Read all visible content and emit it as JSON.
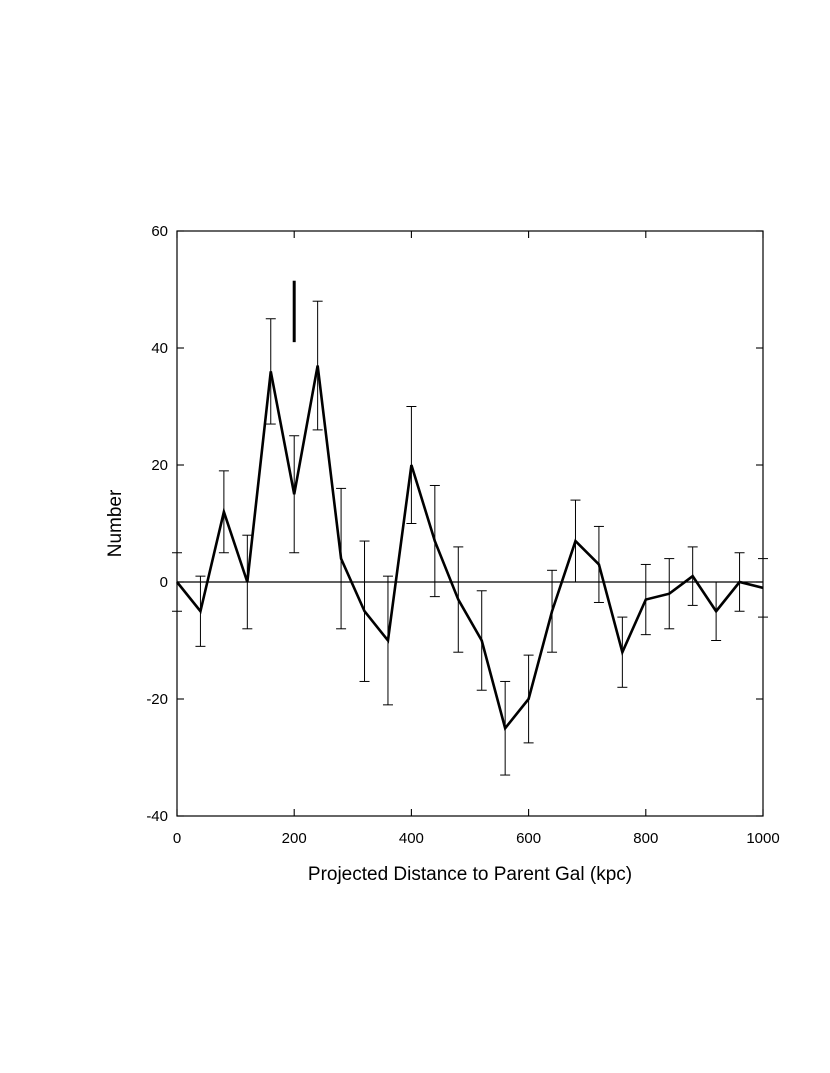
{
  "chart_data": {
    "type": "line",
    "title": "",
    "xlabel": "Projected Distance to Parent Gal (kpc)",
    "ylabel": "Number",
    "xlim": [
      0,
      1000
    ],
    "ylim": [
      -40,
      60
    ],
    "x_ticks": [
      0,
      200,
      400,
      600,
      800,
      1000
    ],
    "y_ticks": [
      -40,
      -20,
      0,
      20,
      40,
      60
    ],
    "x_tick_labels": [
      "0",
      "200",
      "400",
      "600",
      "800",
      "1000"
    ],
    "y_tick_labels": [
      "-40",
      "-20",
      "0",
      "20",
      "40",
      "60"
    ],
    "grid": false,
    "legend": "none",
    "zero_line": true,
    "marker": {
      "x": 200,
      "y_from": 41,
      "y_to": 51.5
    },
    "series": [
      {
        "x": [
          0,
          40,
          80,
          120,
          160,
          200,
          240,
          280,
          320,
          360,
          400,
          440,
          480,
          520,
          560,
          600,
          640,
          680,
          720,
          760,
          800,
          840,
          880,
          920,
          960,
          1000
        ],
        "y": [
          0,
          -5,
          12,
          0,
          36,
          15,
          37,
          4,
          -5,
          -10,
          20,
          7,
          -3,
          -10,
          -25,
          -20,
          -5,
          7,
          3,
          -12,
          -3,
          -2,
          1,
          -5,
          0,
          -1
        ],
        "err_low": [
          -5,
          -11,
          5,
          -8,
          27,
          5,
          26,
          -8,
          -17,
          -21,
          10,
          -2.5,
          -12,
          -18.5,
          -33,
          -27.5,
          -12,
          0,
          -3.5,
          -18,
          -9,
          -8,
          -4,
          -10,
          -5,
          -6
        ],
        "err_high": [
          5,
          1,
          19,
          8,
          45,
          25,
          48,
          16,
          7,
          1,
          30,
          16.5,
          6,
          -1.5,
          -17,
          -12.5,
          2,
          14,
          9.5,
          -6,
          3,
          4,
          6,
          0,
          5,
          4
        ]
      }
    ],
    "colors": {
      "line": "#000000",
      "axis": "#000000"
    }
  }
}
